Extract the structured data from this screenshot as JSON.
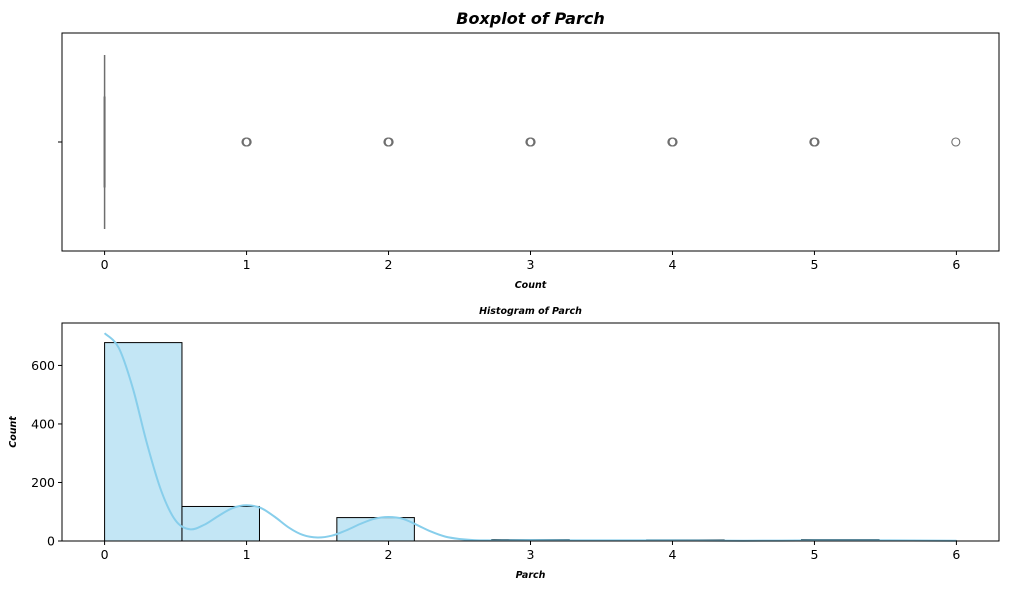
{
  "chart_data": [
    {
      "type": "boxplot",
      "title": "Boxplot of Parch",
      "xlabel": "Count",
      "ylabel": "",
      "xlim": [
        -0.3,
        6.3
      ],
      "xticks": [
        "0",
        "1",
        "2",
        "3",
        "4",
        "5",
        "6"
      ],
      "box": {
        "min": 0,
        "q1": 0,
        "median": 0,
        "q3": 0,
        "max": 0
      },
      "outliers": [
        1,
        2,
        3,
        4,
        5,
        6
      ],
      "colors": {
        "box": "#87ceeb",
        "line": "#6e6e6e",
        "outlier": "#6e6e6e"
      }
    },
    {
      "type": "histogram",
      "title": "Histogram of Parch",
      "xlabel": "Parch",
      "ylabel": "Count",
      "xlim": [
        -0.3,
        6.3
      ],
      "ylim": [
        0,
        745
      ],
      "xticks": [
        "0",
        "1",
        "2",
        "3",
        "4",
        "5",
        "6"
      ],
      "yticks": [
        "0",
        "200",
        "400",
        "600"
      ],
      "bins": [
        {
          "start": 0.0,
          "end": 0.545,
          "count": 678
        },
        {
          "start": 0.545,
          "end": 1.091,
          "count": 118
        },
        {
          "start": 1.091,
          "end": 1.636,
          "count": 0
        },
        {
          "start": 1.636,
          "end": 2.182,
          "count": 80
        },
        {
          "start": 2.182,
          "end": 2.727,
          "count": 0
        },
        {
          "start": 2.727,
          "end": 3.273,
          "count": 5
        },
        {
          "start": 3.273,
          "end": 3.818,
          "count": 0
        },
        {
          "start": 3.818,
          "end": 4.364,
          "count": 4
        },
        {
          "start": 4.364,
          "end": 4.909,
          "count": 0
        },
        {
          "start": 4.909,
          "end": 5.455,
          "count": 5
        },
        {
          "start": 5.455,
          "end": 6.0,
          "count": 1
        }
      ],
      "kde": {
        "x": [
          0,
          0.1,
          0.2,
          0.3,
          0.4,
          0.5,
          0.6,
          0.7,
          0.8,
          0.9,
          1.0,
          1.1,
          1.2,
          1.3,
          1.4,
          1.5,
          1.6,
          1.7,
          1.8,
          1.9,
          2.0,
          2.1,
          2.2,
          2.3,
          2.4,
          2.5,
          2.6,
          2.7,
          2.8,
          3.0,
          3.5,
          4.0,
          4.5,
          5.0,
          5.5,
          6.0
        ],
        "y": [
          710,
          660,
          520,
          330,
          170,
          70,
          40,
          55,
          85,
          112,
          122,
          113,
          82,
          45,
          20,
          12,
          18,
          36,
          58,
          76,
          82,
          76,
          55,
          32,
          15,
          7,
          3,
          2,
          2,
          3,
          2,
          2,
          1,
          2,
          2,
          1
        ]
      },
      "colors": {
        "bar": "#87ceeb",
        "bar_opacity": 0.5,
        "edge": "#000000",
        "kde": "#87ceeb"
      }
    }
  ]
}
